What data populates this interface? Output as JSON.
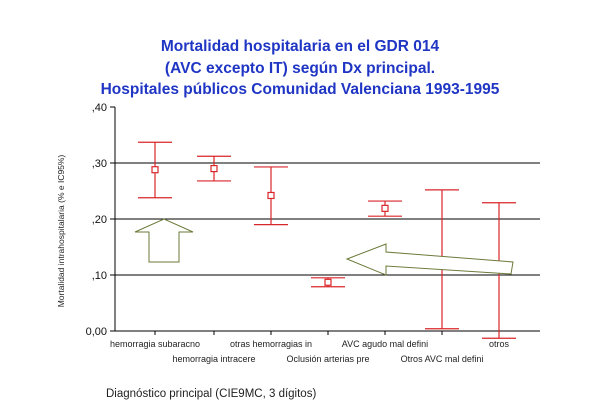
{
  "chart_data": {
    "type": "errorbar",
    "title_lines": [
      "Mortalidad hospitalaria en el GDR 014",
      "(AVC excepto IT) según Dx principal.",
      "Hospitales públicos Comunidad Valenciana 1993-1995"
    ],
    "xlabel": "Diagnóstico principal (CIE9MC, 3 dígitos)",
    "ylabel": "Mortalidad intrahospitalaria (% e IC95%)",
    "ylim": [
      0,
      0.4
    ],
    "yticks": [
      0,
      0.1,
      0.2,
      0.3,
      0.4
    ],
    "ytick_labels": [
      "0,00",
      ",10",
      ",20",
      ",30",
      ",40"
    ],
    "gridlines_y": [
      0.1,
      0.2,
      0.3
    ],
    "categories": [
      "hemorragia subaracno",
      "hemorragia intracere",
      "otras hemorragias in",
      "Oclusión arterias pre",
      "AVC agudo mal defini",
      "Otros AVC mal defini",
      "otros"
    ],
    "points": [
      {
        "estimate": 0.288,
        "lower": 0.238,
        "upper": 0.337
      },
      {
        "estimate": 0.29,
        "lower": 0.268,
        "upper": 0.312
      },
      {
        "estimate": 0.242,
        "lower": 0.19,
        "upper": 0.293
      },
      {
        "estimate": 0.087,
        "lower": 0.079,
        "upper": 0.095
      },
      {
        "estimate": 0.219,
        "lower": 0.205,
        "upper": 0.232
      },
      {
        "estimate": null,
        "lower": 0.004,
        "upper": 0.252
      },
      {
        "estimate": null,
        "lower": -0.013,
        "upper": 0.229
      }
    ],
    "annotations": [
      "up-arrow",
      "left-arrow"
    ],
    "colors": {
      "title": "#1f35c4",
      "marks": "#d8262a",
      "arrow": "#6b7a3a"
    }
  }
}
